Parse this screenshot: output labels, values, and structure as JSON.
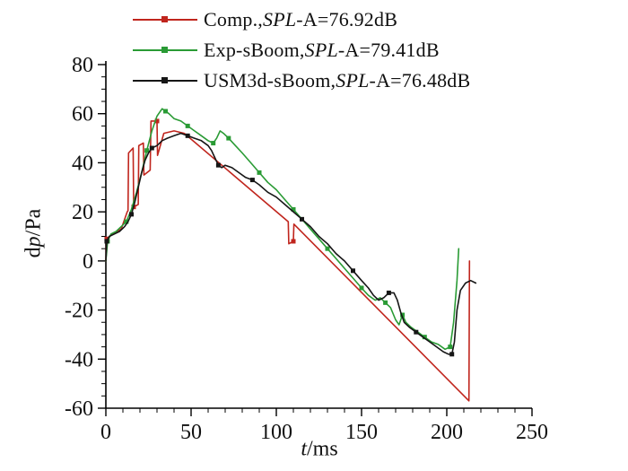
{
  "figure": {
    "background": "#ffffff",
    "axis_color": "#000000"
  },
  "legend": {
    "items": [
      {
        "pre": "Comp.,",
        "italic": "SPL",
        "post": "-A=76.92dB"
      },
      {
        "pre": "Exp-sBoom,",
        "italic": "SPL",
        "post": "-A=79.41dB"
      },
      {
        "pre": "USM3d-sBoom,",
        "italic": "SPL",
        "post": "-A=76.48dB"
      }
    ]
  },
  "chart_data": {
    "type": "line",
    "title": "",
    "xlabel": "t/ms",
    "ylabel": "dp/Pa",
    "xlabel_parts": {
      "italic": "t",
      "rest": "/ms"
    },
    "ylabel_parts": {
      "pre": "d",
      "italic": "p",
      "rest": "/Pa"
    },
    "xlim": [
      0,
      250
    ],
    "ylim": [
      -60,
      80
    ],
    "xticks": [
      0,
      50,
      100,
      150,
      200,
      250
    ],
    "yticks": [
      -60,
      -40,
      -20,
      0,
      20,
      40,
      60,
      80
    ],
    "x_minor_step": 10,
    "y_minor_step": 5,
    "grid": false,
    "legend_position": "top",
    "series": [
      {
        "name": "Comp.,SPL-A=76.92dB",
        "color": "#c0251d",
        "marker": "square",
        "marker_every": 7,
        "x": [
          0,
          0.5,
          4,
          9,
          12.5,
          13,
          13.3,
          16,
          16.3,
          19,
          19.3,
          22,
          22.3,
          26,
          26.5,
          30,
          30.3,
          34,
          40,
          46,
          107,
          107.3,
          110,
          110.3,
          213,
          213.3
        ],
        "y": [
          0,
          9,
          11,
          13,
          20,
          20.5,
          44,
          46,
          22,
          23,
          47,
          48,
          35,
          37,
          57,
          57,
          43,
          52,
          53,
          52,
          16,
          7,
          8,
          15,
          -57,
          0
        ]
      },
      {
        "name": "Exp-sBoom,SPL-A=79.41dB",
        "color": "#2a9b35",
        "marker": "square",
        "marker_every": 4,
        "x": [
          0,
          1,
          3,
          6,
          9,
          12,
          15,
          18,
          21,
          24,
          27,
          30,
          33,
          35,
          37,
          40,
          44,
          48,
          52,
          56,
          60,
          63,
          65,
          67,
          69,
          72,
          76,
          80,
          85,
          90,
          95,
          100,
          105,
          110,
          115,
          120,
          125,
          130,
          135,
          140,
          145,
          150,
          154,
          158,
          161,
          164,
          167,
          170,
          172,
          174,
          176,
          179,
          183,
          187,
          191,
          195,
          199,
          202,
          204,
          206,
          207
        ],
        "y": [
          0,
          8,
          11,
          12,
          14,
          16,
          21,
          28,
          36,
          45,
          53,
          59,
          62,
          61,
          60,
          58,
          57,
          55,
          53,
          51,
          49,
          48,
          50,
          53,
          52,
          50,
          47,
          44,
          40,
          36,
          32,
          29,
          25,
          21,
          17,
          13,
          9,
          5,
          1,
          -3,
          -7,
          -11,
          -14,
          -16,
          -15,
          -17,
          -19,
          -24,
          -26,
          -22,
          -25,
          -27,
          -29,
          -31,
          -33,
          -34,
          -36,
          -35,
          -25,
          -8,
          5
        ]
      },
      {
        "name": "USM3d-sBoom,SPL-A=76.48dB",
        "color": "#161616",
        "marker": "square",
        "marker_every": 6,
        "x": [
          0,
          0.5,
          2,
          5,
          8,
          11,
          13,
          15,
          17,
          19,
          21,
          23,
          25,
          27,
          30,
          33,
          36,
          40,
          44,
          48,
          52,
          56,
          60,
          62,
          64,
          66,
          68,
          70,
          74,
          78,
          82,
          86,
          90,
          95,
          100,
          105,
          110,
          115,
          120,
          125,
          130,
          135,
          140,
          145,
          150,
          154,
          157,
          160,
          163,
          166,
          169,
          171,
          173,
          175,
          178,
          182,
          186,
          190,
          194,
          198,
          201,
          203,
          204.5,
          206,
          208,
          211,
          214,
          217
        ],
        "y": [
          0,
          8,
          10,
          11,
          12,
          14,
          16,
          19,
          24,
          30,
          36,
          41,
          44,
          46,
          47,
          49,
          50,
          51,
          52,
          51,
          50,
          49,
          47,
          45,
          42,
          39,
          38,
          39,
          38,
          36,
          34,
          33,
          31,
          28,
          26,
          23,
          20,
          17,
          14,
          10,
          7,
          3,
          0,
          -4,
          -8,
          -11,
          -14,
          -16,
          -15,
          -13,
          -13,
          -16,
          -21,
          -25,
          -27,
          -29,
          -31,
          -33,
          -35,
          -37,
          -38,
          -38,
          -33,
          -20,
          -12,
          -9,
          -8,
          -9
        ]
      }
    ]
  }
}
